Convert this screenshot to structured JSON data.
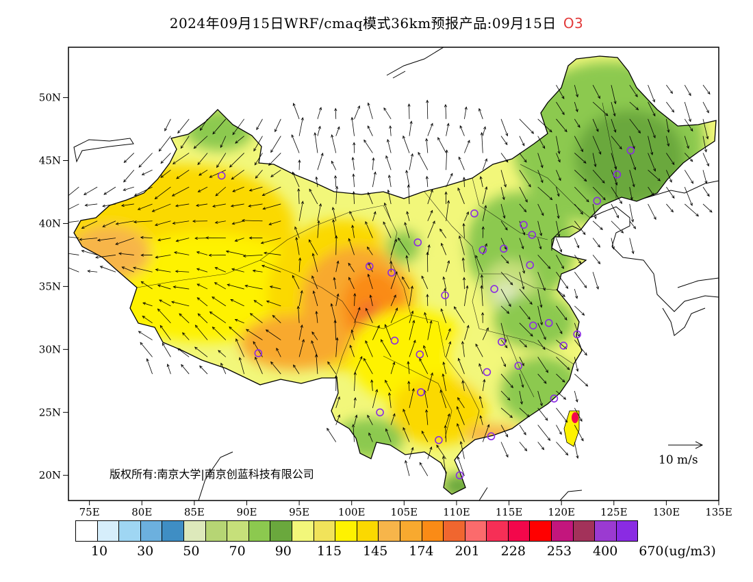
{
  "title": {
    "main": "2024年09月15日WRF/cmaq模式36km预报产品:09月15日",
    "species": "O3"
  },
  "axes": {
    "x_ticks": [
      "75E",
      "80E",
      "85E",
      "90E",
      "95E",
      "100E",
      "105E",
      "110E",
      "115E",
      "120E",
      "125E",
      "130E",
      "135E"
    ],
    "y_ticks": [
      "50N",
      "45N",
      "40N",
      "35N",
      "30N",
      "25N",
      "20N"
    ]
  },
  "copyright": "版权所有:南京大学|南京创蓝科技有限公司",
  "wind_scale": {
    "label": "10 m/s"
  },
  "legend": {
    "unit": "(ug/m3)",
    "labels": [
      "10",
      "30",
      "50",
      "70",
      "90",
      "115",
      "145",
      "174",
      "201",
      "228",
      "253",
      "400",
      "670"
    ],
    "colors": [
      "#ffffff",
      "#d6eefb",
      "#9fd6f3",
      "#6cb0de",
      "#3f8ec4",
      "#dde9bb",
      "#b6d574",
      "#c6e07a",
      "#8cc94f",
      "#6aa83d",
      "#f2f77a",
      "#f1e35a",
      "#fef200",
      "#fbd900",
      "#f7b54a",
      "#f8a92f",
      "#fa8b16",
      "#f0662f",
      "#fb6b6c",
      "#f62f56",
      "#f3074b",
      "#ff0000",
      "#c3167d",
      "#a3325a",
      "#9b3ad1",
      "#8a2be3"
    ]
  },
  "chart_data": {
    "type": "heatmap",
    "title": "2024年09月15日WRF/cmaq模式36km预报产品:09月15日 O3",
    "xlabel": "",
    "ylabel": "",
    "xlim": [
      73,
      135
    ],
    "ylim": [
      18,
      54
    ],
    "x_tick_values": [
      75,
      80,
      85,
      90,
      95,
      100,
      105,
      110,
      115,
      120,
      125,
      130,
      135
    ],
    "y_tick_values": [
      50,
      45,
      40,
      35,
      30,
      25,
      20
    ],
    "colorbar": {
      "unit": "(ug/m3)",
      "boundaries": [
        10,
        30,
        50,
        70,
        90,
        115,
        145,
        174,
        201,
        228,
        253,
        400,
        670
      ],
      "levels": 26
    },
    "observation_sites": [
      {
        "lon": 87.6,
        "lat": 43.8
      },
      {
        "lon": 91.1,
        "lat": 29.7
      },
      {
        "lon": 101.7,
        "lat": 36.6
      },
      {
        "lon": 103.8,
        "lat": 36.1
      },
      {
        "lon": 106.3,
        "lat": 38.5
      },
      {
        "lon": 108.9,
        "lat": 34.3
      },
      {
        "lon": 111.7,
        "lat": 40.8
      },
      {
        "lon": 112.5,
        "lat": 37.9
      },
      {
        "lon": 114.5,
        "lat": 38.0
      },
      {
        "lon": 116.4,
        "lat": 39.9
      },
      {
        "lon": 117.2,
        "lat": 39.1
      },
      {
        "lon": 117.0,
        "lat": 36.7
      },
      {
        "lon": 113.6,
        "lat": 34.8
      },
      {
        "lon": 117.3,
        "lat": 31.9
      },
      {
        "lon": 118.8,
        "lat": 32.1
      },
      {
        "lon": 121.5,
        "lat": 31.2
      },
      {
        "lon": 120.2,
        "lat": 30.3
      },
      {
        "lon": 114.3,
        "lat": 30.6
      },
      {
        "lon": 115.9,
        "lat": 28.7
      },
      {
        "lon": 112.9,
        "lat": 28.2
      },
      {
        "lon": 119.3,
        "lat": 26.1
      },
      {
        "lon": 113.3,
        "lat": 23.1
      },
      {
        "lon": 108.3,
        "lat": 22.8
      },
      {
        "lon": 110.3,
        "lat": 20.0
      },
      {
        "lon": 106.6,
        "lat": 26.6
      },
      {
        "lon": 102.7,
        "lat": 25.0
      },
      {
        "lon": 104.1,
        "lat": 30.7
      },
      {
        "lon": 106.5,
        "lat": 29.6
      },
      {
        "lon": 123.4,
        "lat": 41.8
      },
      {
        "lon": 125.3,
        "lat": 43.9
      },
      {
        "lon": 126.6,
        "lat": 45.8
      }
    ],
    "wind_reference_ms": 10
  }
}
